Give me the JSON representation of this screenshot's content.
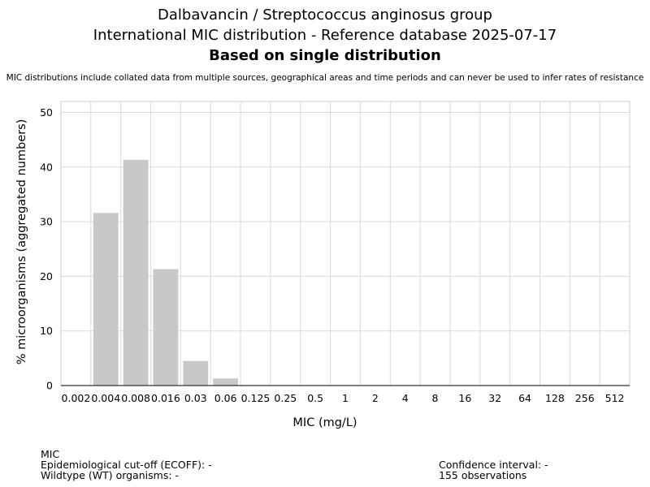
{
  "chart_data": {
    "type": "bar",
    "title_lines": [
      "Dalbavancin / Streptococcus anginosus group",
      "International MIC distribution - Reference database 2025-07-17",
      "Based on single distribution"
    ],
    "subtitle": "MIC distributions include collated data from multiple sources, geographical areas and time periods and can never be used to infer rates of resistance",
    "xlabel": "MIC (mg/L)",
    "ylabel": "% microorganisms (aggregated numbers)",
    "categories": [
      "0.002",
      "0.004",
      "0.008",
      "0.016",
      "0.03",
      "0.06",
      "0.125",
      "0.25",
      "0.5",
      "1",
      "2",
      "4",
      "8",
      "16",
      "32",
      "64",
      "128",
      "256",
      "512"
    ],
    "values": [
      0,
      31.6,
      41.3,
      21.3,
      4.5,
      1.3,
      0,
      0,
      0,
      0,
      0,
      0,
      0,
      0,
      0,
      0,
      0,
      0,
      0
    ],
    "ylim": [
      0,
      52
    ],
    "yticks": [
      0,
      10,
      20,
      30,
      40,
      50
    ],
    "grid": true,
    "bar_color": "#c8c8c8"
  },
  "footer": {
    "left_lines": [
      "MIC",
      "Epidemiological cut-off (ECOFF): -",
      "Wildtype (WT) organisms:  -"
    ],
    "right_lines": [
      "Confidence interval: -",
      "155 observations"
    ]
  }
}
